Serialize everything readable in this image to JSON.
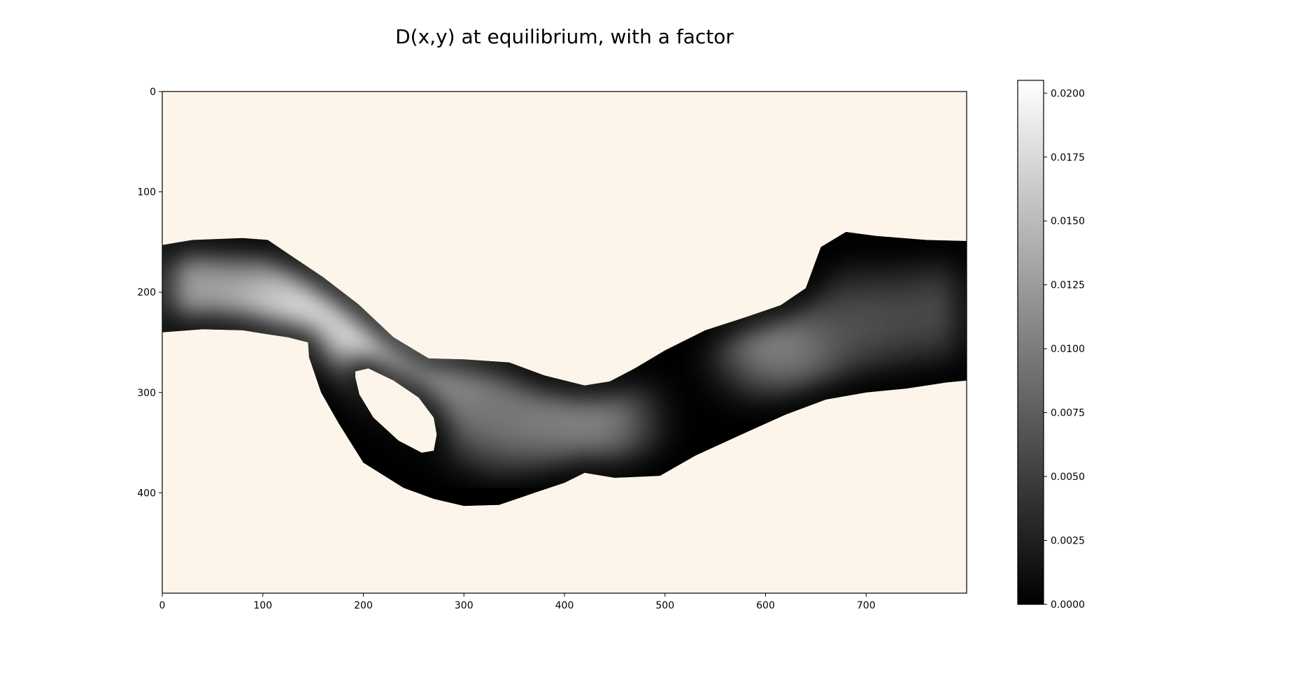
{
  "chart_data": {
    "type": "heatmap",
    "title": "D(x,y) at equilibrium, with a factor",
    "xlabel": "",
    "ylabel": "",
    "xlim": [
      0,
      800
    ],
    "ylim": [
      500,
      0
    ],
    "x_ticks": [
      "0",
      "100",
      "200",
      "300",
      "400",
      "500",
      "600",
      "700"
    ],
    "y_ticks": [
      "0",
      "100",
      "200",
      "300",
      "400"
    ],
    "background_color": "#fdf5ea",
    "colormap": "gray",
    "colorbar": {
      "min": 0.0,
      "max": 0.0205,
      "ticks": [
        "0.0000",
        "0.0025",
        "0.0050",
        "0.0075",
        "0.0100",
        "0.0125",
        "0.0150",
        "0.0175",
        "0.0200"
      ]
    },
    "grid": false,
    "channel": {
      "upper_edge": [
        [
          0,
          153
        ],
        [
          30,
          148
        ],
        [
          80,
          146
        ],
        [
          105,
          148
        ],
        [
          130,
          165
        ],
        [
          160,
          185
        ],
        [
          195,
          212
        ],
        [
          230,
          245
        ],
        [
          265,
          266
        ],
        [
          300,
          267
        ],
        [
          345,
          270
        ],
        [
          380,
          283
        ],
        [
          420,
          293
        ],
        [
          445,
          289
        ],
        [
          470,
          276
        ],
        [
          500,
          258
        ],
        [
          540,
          238
        ],
        [
          580,
          225
        ],
        [
          615,
          213
        ],
        [
          640,
          196
        ],
        [
          655,
          155
        ],
        [
          680,
          140
        ],
        [
          710,
          144
        ],
        [
          760,
          148
        ],
        [
          800,
          149
        ]
      ],
      "lower_edge": [
        [
          0,
          240
        ],
        [
          40,
          237
        ],
        [
          80,
          238
        ],
        [
          105,
          242
        ],
        [
          125,
          245
        ],
        [
          145,
          250
        ],
        [
          146,
          265
        ],
        [
          158,
          300
        ],
        [
          175,
          330
        ],
        [
          200,
          370
        ],
        [
          240,
          395
        ],
        [
          270,
          406
        ],
        [
          300,
          413
        ],
        [
          335,
          412
        ],
        [
          370,
          400
        ],
        [
          400,
          390
        ],
        [
          420,
          380
        ],
        [
          450,
          385
        ],
        [
          495,
          383
        ],
        [
          530,
          363
        ],
        [
          580,
          340
        ],
        [
          620,
          322
        ],
        [
          660,
          307
        ],
        [
          700,
          300
        ],
        [
          740,
          296
        ],
        [
          780,
          290
        ],
        [
          800,
          288
        ]
      ],
      "hole_edge": [
        [
          192,
          279
        ],
        [
          205,
          276
        ],
        [
          230,
          288
        ],
        [
          255,
          305
        ],
        [
          270,
          325
        ],
        [
          273,
          342
        ],
        [
          270,
          358
        ],
        [
          258,
          360
        ],
        [
          235,
          348
        ],
        [
          210,
          325
        ],
        [
          196,
          302
        ],
        [
          192,
          285
        ]
      ],
      "hotspots": [
        {
          "x": 20,
          "y": 195,
          "value": 0.013
        },
        {
          "x": 120,
          "y": 205,
          "value": 0.015
        },
        {
          "x": 160,
          "y": 225,
          "value": 0.0175
        },
        {
          "x": 250,
          "y": 268,
          "value": 0.0205
        },
        {
          "x": 300,
          "y": 300,
          "value": 0.011
        },
        {
          "x": 350,
          "y": 330,
          "value": 0.0095
        },
        {
          "x": 420,
          "y": 330,
          "value": 0.0105
        },
        {
          "x": 620,
          "y": 255,
          "value": 0.0105
        },
        {
          "x": 700,
          "y": 230,
          "value": 0.0065
        },
        {
          "x": 780,
          "y": 220,
          "value": 0.006
        }
      ]
    }
  }
}
